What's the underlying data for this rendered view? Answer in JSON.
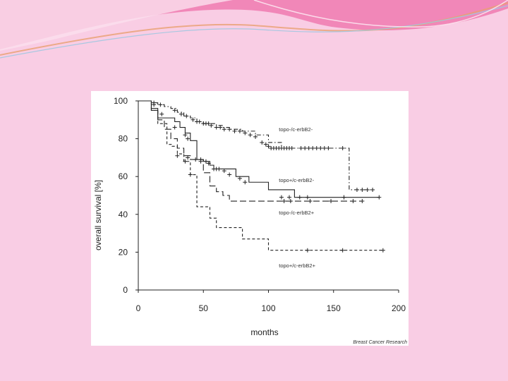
{
  "colors": {
    "background": "#f9cde4",
    "banner_pink": "#f07ab0",
    "banner_light": "#fbe0ee",
    "banner_wave": "#e8a070",
    "plot_line": "#222222"
  },
  "credit": "Breast Cancer Research",
  "chart_data": {
    "type": "line",
    "title": "",
    "xlabel": "months",
    "ylabel": "overall survival [%]",
    "xlim": [
      0,
      200
    ],
    "ylim": [
      0,
      100
    ],
    "xticks": [
      "0",
      "50",
      "100",
      "150",
      "200"
    ],
    "yticks": [
      "0",
      "20",
      "40",
      "60",
      "80",
      "100"
    ],
    "grid": false,
    "series": [
      {
        "name": "topo-/c-erbB2-",
        "style": "dashdot",
        "label_at": [
          108,
          84
        ],
        "x": [
          0,
          10,
          15,
          20,
          25,
          30,
          35,
          40,
          45,
          50,
          55,
          60,
          65,
          70,
          80,
          90,
          100,
          110,
          120,
          130,
          140,
          150,
          158,
          162,
          165,
          180
        ],
        "y": [
          100,
          99,
          98,
          97,
          96,
          94,
          92,
          91,
          89,
          88,
          88,
          87,
          86,
          85,
          84,
          82,
          78,
          75,
          75,
          75,
          75,
          75,
          75,
          53,
          53,
          53
        ],
        "censors": [
          [
            12,
            99
          ],
          [
            17,
            98
          ],
          [
            28,
            95
          ],
          [
            33,
            93
          ],
          [
            37,
            92
          ],
          [
            42,
            90
          ],
          [
            45,
            89
          ],
          [
            47,
            89
          ],
          [
            50,
            88
          ],
          [
            52,
            88
          ],
          [
            54,
            88
          ],
          [
            56,
            87
          ],
          [
            60,
            86
          ],
          [
            63,
            86
          ],
          [
            66,
            85
          ],
          [
            70,
            85
          ],
          [
            74,
            84
          ],
          [
            78,
            84
          ],
          [
            82,
            83
          ],
          [
            86,
            82
          ],
          [
            90,
            81
          ],
          [
            95,
            78
          ],
          [
            98,
            77
          ],
          [
            100,
            76
          ],
          [
            102,
            75
          ],
          [
            104,
            75
          ],
          [
            106,
            75
          ],
          [
            108,
            75
          ],
          [
            110,
            75
          ],
          [
            112,
            75
          ],
          [
            114,
            75
          ],
          [
            116,
            75
          ],
          [
            118,
            75
          ],
          [
            125,
            75
          ],
          [
            128,
            75
          ],
          [
            131,
            75
          ],
          [
            134,
            75
          ],
          [
            137,
            75
          ],
          [
            140,
            75
          ],
          [
            143,
            75
          ],
          [
            146,
            75
          ],
          [
            157,
            75
          ],
          [
            168,
            53
          ],
          [
            172,
            53
          ],
          [
            176,
            53
          ],
          [
            180,
            53
          ]
        ]
      },
      {
        "name": "topo+/c-erbB2-",
        "style": "solid",
        "label_at": [
          108,
          57
        ],
        "x": [
          0,
          10,
          15,
          22,
          28,
          32,
          36,
          40,
          45,
          50,
          55,
          58,
          65,
          75,
          85,
          100,
          120,
          140,
          160,
          185
        ],
        "y": [
          100,
          96,
          91,
          91,
          89,
          86,
          83,
          79,
          69,
          68,
          66,
          64,
          64,
          60,
          57,
          53,
          49,
          49,
          49,
          49
        ],
        "censors": [
          [
            36,
            82
          ],
          [
            38,
            80
          ],
          [
            48,
            69
          ],
          [
            52,
            68
          ],
          [
            54,
            67
          ],
          [
            58,
            64
          ],
          [
            60,
            64
          ],
          [
            62,
            64
          ],
          [
            66,
            63
          ],
          [
            70,
            61
          ],
          [
            78,
            59
          ],
          [
            82,
            57
          ],
          [
            110,
            49
          ],
          [
            116,
            49
          ],
          [
            124,
            49
          ],
          [
            130,
            49
          ],
          [
            158,
            49
          ],
          [
            185,
            49
          ]
        ]
      },
      {
        "name": "topo-/c-erbB2+",
        "style": "longdash",
        "label_at": [
          108,
          40
        ],
        "x": [
          0,
          10,
          15,
          20,
          25,
          30,
          35,
          40,
          50,
          55,
          60,
          65,
          70,
          100,
          120,
          140,
          172
        ],
        "y": [
          100,
          95,
          90,
          85,
          80,
          75,
          71,
          69,
          62,
          55,
          52,
          50,
          47,
          47,
          47,
          47,
          47
        ],
        "censors": [
          [
            12,
            98
          ],
          [
            18,
            93
          ],
          [
            28,
            86
          ],
          [
            38,
            70
          ],
          [
            44,
            69
          ],
          [
            48,
            68
          ],
          [
            112,
            47
          ],
          [
            117,
            47
          ],
          [
            132,
            47
          ],
          [
            148,
            47
          ],
          [
            165,
            47
          ],
          [
            172,
            47
          ]
        ]
      },
      {
        "name": "topo+/c-erbB2+",
        "style": "dashed",
        "label_at": [
          108,
          12
        ],
        "x": [
          0,
          10,
          15,
          22,
          26,
          30,
          35,
          40,
          45,
          55,
          60,
          80,
          100,
          130,
          150,
          160,
          188
        ],
        "y": [
          100,
          95,
          88,
          77,
          76,
          72,
          68,
          61,
          44,
          38,
          33,
          27,
          21,
          21,
          21,
          21,
          21
        ],
        "censors": [
          [
            30,
            71
          ],
          [
            36,
            68
          ],
          [
            40,
            61
          ],
          [
            130,
            21
          ],
          [
            157,
            21
          ],
          [
            188,
            21
          ]
        ]
      }
    ]
  }
}
